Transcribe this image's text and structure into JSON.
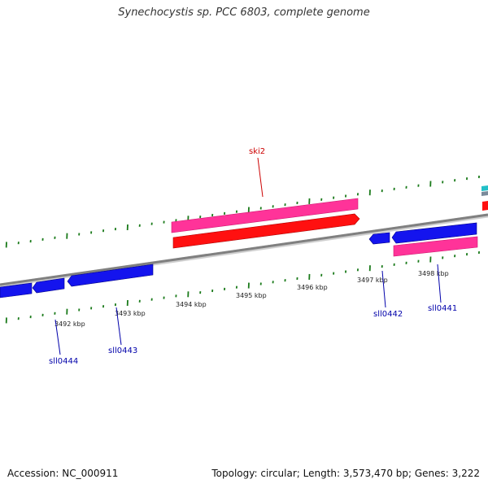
{
  "title": "Synechocystis sp. PCC 6803, complete genome",
  "footer": {
    "accession": "Accession: NC_000911",
    "summary": "Topology: circular; Length: 3,573,470 bp; Genes: 3,222"
  },
  "colors": {
    "backbone": "#8a8a8a",
    "ticks": "#1a7a1a",
    "forward_gene": "#ff1010",
    "forward_gene_alt": "#ff3399",
    "reverse_gene": "#1414ee",
    "forward_label": "#cc0000",
    "reverse_label": "#0000aa",
    "cyan_feature": "#22c0c8"
  },
  "ticks": [
    "3492 kbp",
    "3493 kbp",
    "3494 kbp",
    "3495 kbp",
    "3496 kbp",
    "3497 kbp",
    "3498 kbp"
  ],
  "genes": [
    {
      "name": "ski2",
      "strand": "forward"
    },
    {
      "name": "sll0441",
      "strand": "reverse"
    },
    {
      "name": "sll0442",
      "strand": "reverse"
    },
    {
      "name": "sll0443",
      "strand": "reverse"
    },
    {
      "name": "sll0444",
      "strand": "reverse"
    }
  ]
}
